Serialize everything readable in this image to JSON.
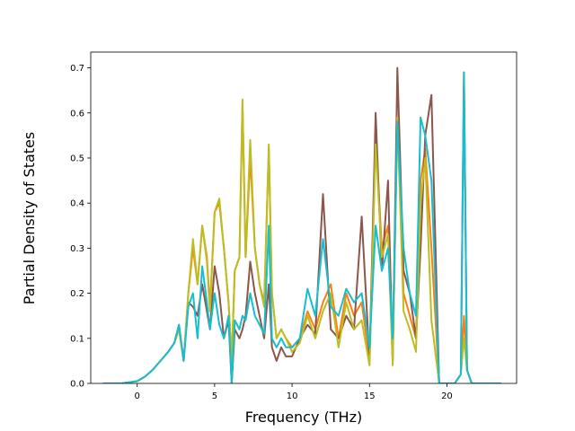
{
  "chart_data": {
    "type": "line",
    "title": "",
    "xlabel": "Frequency (THz)",
    "ylabel": "Partial Density of States",
    "xlim": [
      -3.0,
      24.5
    ],
    "ylim": [
      0.0,
      0.735
    ],
    "xticks": [
      0,
      5,
      10,
      15,
      20
    ],
    "xtick_labels": [
      "0",
      "5",
      "10",
      "15",
      "20"
    ],
    "yticks": [
      0.0,
      0.1,
      0.2,
      0.3,
      0.4,
      0.5,
      0.6,
      0.7
    ],
    "ytick_labels": [
      "0.0",
      "0.1",
      "0.2",
      "0.3",
      "0.4",
      "0.5",
      "0.6",
      "0.7"
    ],
    "grid": false,
    "legend": "none",
    "series": [
      {
        "color": "#ff7f0e",
        "x": [
          -2.2,
          -1,
          0,
          0.5,
          1,
          1.5,
          2,
          2.4,
          2.7,
          3.0,
          3.3,
          3.6,
          3.9,
          4.2,
          4.5,
          4.7,
          5.0,
          5.3,
          5.6,
          5.9,
          6.1,
          6.3,
          6.6,
          6.8,
          7.0,
          7.3,
          7.6,
          7.9,
          8.2,
          8.5,
          8.7,
          9.0,
          9.3,
          9.6,
          10.0,
          10.5,
          11.0,
          11.5,
          12.0,
          12.5,
          13.0,
          13.5,
          14.0,
          14.5,
          15.0,
          15.4,
          15.8,
          16.2,
          16.5,
          16.8,
          17.2,
          17.6,
          18.0,
          18.3,
          18.6,
          19.0,
          19.5,
          20.0,
          20.5,
          20.9,
          21.1,
          21.3,
          21.6,
          22,
          23.5
        ],
        "y": [
          0,
          0,
          0.005,
          0.015,
          0.03,
          0.05,
          0.07,
          0.09,
          0.12,
          0.05,
          0.2,
          0.3,
          0.22,
          0.35,
          0.28,
          0.17,
          0.38,
          0.4,
          0.3,
          0.18,
          0.05,
          0.25,
          0.28,
          0.62,
          0.28,
          0.5,
          0.3,
          0.22,
          0.18,
          0.52,
          0.2,
          0.1,
          0.12,
          0.1,
          0.08,
          0.1,
          0.16,
          0.12,
          0.18,
          0.22,
          0.1,
          0.2,
          0.15,
          0.18,
          0.05,
          0.55,
          0.3,
          0.35,
          0.05,
          0.59,
          0.2,
          0.15,
          0.1,
          0.45,
          0.52,
          0.3,
          0.0,
          0.0,
          0.0,
          0.02,
          0.15,
          0.03,
          0.0,
          0.0,
          0.0
        ]
      },
      {
        "color": "#8c564b",
        "x": [
          -2.2,
          -1,
          0,
          0.5,
          1,
          1.5,
          2,
          2.4,
          2.7,
          3.0,
          3.3,
          3.6,
          3.9,
          4.2,
          4.5,
          4.7,
          5.0,
          5.3,
          5.6,
          5.9,
          6.1,
          6.3,
          6.6,
          6.8,
          7.0,
          7.3,
          7.6,
          7.9,
          8.2,
          8.5,
          8.7,
          9.0,
          9.3,
          9.6,
          10.0,
          10.5,
          11.0,
          11.5,
          12.0,
          12.5,
          13.0,
          13.5,
          14.0,
          14.5,
          15.0,
          15.4,
          15.8,
          16.2,
          16.5,
          16.8,
          17.2,
          17.6,
          18.0,
          18.3,
          18.6,
          19.0,
          19.5,
          20.0,
          20.5,
          20.9,
          21.1,
          21.3,
          21.6,
          22,
          23.5
        ],
        "y": [
          0,
          0,
          0.005,
          0.015,
          0.03,
          0.05,
          0.07,
          0.09,
          0.13,
          0.05,
          0.18,
          0.17,
          0.15,
          0.22,
          0.16,
          0.12,
          0.26,
          0.2,
          0.1,
          0.14,
          0.0,
          0.12,
          0.1,
          0.12,
          0.15,
          0.27,
          0.2,
          0.15,
          0.1,
          0.22,
          0.08,
          0.05,
          0.08,
          0.06,
          0.06,
          0.1,
          0.13,
          0.11,
          0.42,
          0.12,
          0.1,
          0.15,
          0.12,
          0.37,
          0.05,
          0.6,
          0.25,
          0.45,
          0.05,
          0.7,
          0.25,
          0.2,
          0.1,
          0.3,
          0.55,
          0.64,
          0.0,
          0.0,
          0.0,
          0.02,
          0.69,
          0.03,
          0.0,
          0.0,
          0.0
        ]
      },
      {
        "color": "#bcbd22",
        "x": [
          -2.2,
          -1,
          0,
          0.5,
          1,
          1.5,
          2,
          2.4,
          2.7,
          3.0,
          3.3,
          3.6,
          3.9,
          4.2,
          4.5,
          4.7,
          5.0,
          5.3,
          5.6,
          5.9,
          6.1,
          6.3,
          6.6,
          6.8,
          7.0,
          7.3,
          7.6,
          7.9,
          8.2,
          8.5,
          8.7,
          9.0,
          9.3,
          9.6,
          10.0,
          10.5,
          11.0,
          11.5,
          12.0,
          12.5,
          13.0,
          13.5,
          14.0,
          14.5,
          15.0,
          15.4,
          15.8,
          16.2,
          16.5,
          16.8,
          17.2,
          17.6,
          18.0,
          18.3,
          18.6,
          19.0,
          19.5,
          20.0,
          20.5,
          20.9,
          21.1,
          21.3,
          21.6,
          22,
          23.5
        ],
        "y": [
          0,
          0,
          0.005,
          0.015,
          0.03,
          0.05,
          0.07,
          0.09,
          0.12,
          0.05,
          0.2,
          0.32,
          0.22,
          0.35,
          0.27,
          0.16,
          0.38,
          0.41,
          0.3,
          0.18,
          0.05,
          0.25,
          0.28,
          0.63,
          0.28,
          0.54,
          0.3,
          0.22,
          0.17,
          0.53,
          0.2,
          0.1,
          0.12,
          0.1,
          0.07,
          0.09,
          0.15,
          0.1,
          0.16,
          0.2,
          0.08,
          0.18,
          0.12,
          0.14,
          0.04,
          0.53,
          0.28,
          0.33,
          0.04,
          0.59,
          0.16,
          0.12,
          0.07,
          0.4,
          0.5,
          0.14,
          0.0,
          0.0,
          0.0,
          0.02,
          0.1,
          0.03,
          0.0,
          0.0,
          0.0
        ]
      },
      {
        "color": "#17becf",
        "x": [
          -2.2,
          -1,
          0,
          0.5,
          1,
          1.5,
          2,
          2.4,
          2.7,
          3.0,
          3.3,
          3.6,
          3.9,
          4.2,
          4.5,
          4.7,
          5.0,
          5.3,
          5.6,
          5.9,
          6.1,
          6.3,
          6.6,
          6.8,
          7.0,
          7.3,
          7.6,
          7.9,
          8.2,
          8.5,
          8.7,
          9.0,
          9.3,
          9.6,
          10.0,
          10.5,
          11.0,
          11.5,
          12.0,
          12.5,
          13.0,
          13.5,
          14.0,
          14.5,
          15.0,
          15.4,
          15.8,
          16.2,
          16.5,
          16.8,
          17.2,
          17.6,
          18.0,
          18.3,
          18.6,
          19.0,
          19.5,
          20.0,
          20.5,
          20.9,
          21.1,
          21.3,
          21.6,
          22,
          23.5
        ],
        "y": [
          0,
          0,
          0.005,
          0.015,
          0.03,
          0.05,
          0.07,
          0.09,
          0.13,
          0.05,
          0.17,
          0.2,
          0.1,
          0.26,
          0.18,
          0.12,
          0.2,
          0.13,
          0.1,
          0.15,
          0.0,
          0.14,
          0.12,
          0.15,
          0.14,
          0.2,
          0.15,
          0.13,
          0.11,
          0.35,
          0.1,
          0.08,
          0.1,
          0.08,
          0.08,
          0.1,
          0.21,
          0.15,
          0.32,
          0.17,
          0.15,
          0.21,
          0.18,
          0.2,
          0.08,
          0.35,
          0.25,
          0.3,
          0.1,
          0.58,
          0.3,
          0.2,
          0.15,
          0.59,
          0.55,
          0.45,
          0.0,
          0.0,
          0.0,
          0.02,
          0.69,
          0.03,
          0.0,
          0.0,
          0.0
        ]
      }
    ]
  }
}
